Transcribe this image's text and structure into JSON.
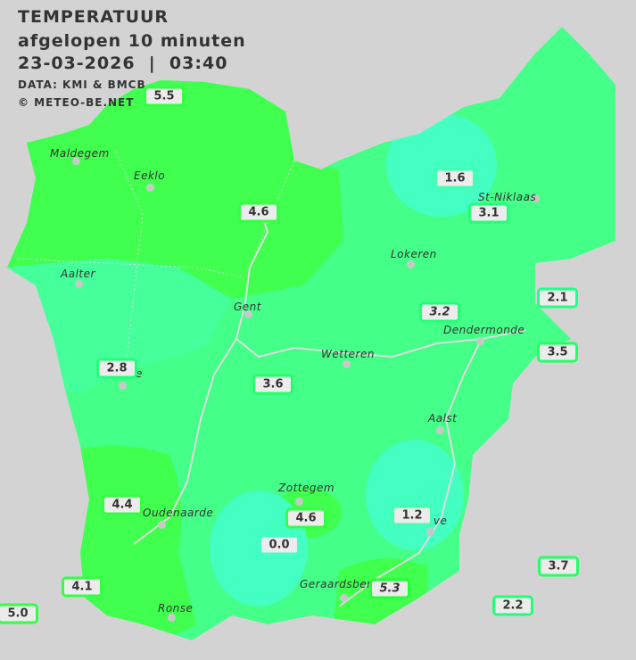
{
  "header": {
    "title": "TEMPERATUUR",
    "subtitle": "afgelopen 10 minuten",
    "datetime": "23-03-2026  |  03:40",
    "source": "DATA: KMI & BMCB",
    "copyright": "© METEO-BE.NET"
  },
  "colors": {
    "background": "#d3d3d3",
    "zone_warm": "#40ff4e",
    "zone_mid": "#44ff88",
    "zone_cold": "#44ffc2",
    "river": "#d8d8d8"
  },
  "cities": [
    {
      "name": "Maldegem"
    },
    {
      "name": "Eeklo"
    },
    {
      "name": "St-Niklaas"
    },
    {
      "name": "Lokeren"
    },
    {
      "name": "Aalter"
    },
    {
      "name": "Gent"
    },
    {
      "name": "Dendermonde"
    },
    {
      "name": "Wetteren"
    },
    {
      "name": "e"
    },
    {
      "name": "Aalst"
    },
    {
      "name": "Zottegem"
    },
    {
      "name": "Oudenaarde"
    },
    {
      "name": "ove"
    },
    {
      "name": "Geraardsberg"
    },
    {
      "name": "Ronse"
    }
  ],
  "stations": [
    {
      "value": "5.5",
      "border": "#33ff44"
    },
    {
      "value": "4.6",
      "border": "#33ff44"
    },
    {
      "value": "1.6",
      "border": "#44ffb0"
    },
    {
      "value": "3.1",
      "border": "#22ff77"
    },
    {
      "value": "2.1",
      "border": "#22ff88"
    },
    {
      "value": "3.2",
      "border": "#22ff77",
      "italic": true
    },
    {
      "value": "3.5",
      "border": "#22ff66"
    },
    {
      "value": "2.8",
      "border": "#22ff77"
    },
    {
      "value": "3.6",
      "border": "#22ff66"
    },
    {
      "value": "4.4",
      "border": "#33ff44"
    },
    {
      "value": "4.6",
      "border": "#33ff44"
    },
    {
      "value": "1.2",
      "border": "#44ffb0"
    },
    {
      "value": "0.0",
      "border": "#44ffc8"
    },
    {
      "value": "3.7",
      "border": "#22ff66"
    },
    {
      "value": "4.1",
      "border": "#33ff44"
    },
    {
      "value": "5.3",
      "border": "#22ff33",
      "italic": true
    },
    {
      "value": "2.2",
      "border": "#22ff77"
    },
    {
      "value": "5.0",
      "border": "#33ff44"
    }
  ]
}
